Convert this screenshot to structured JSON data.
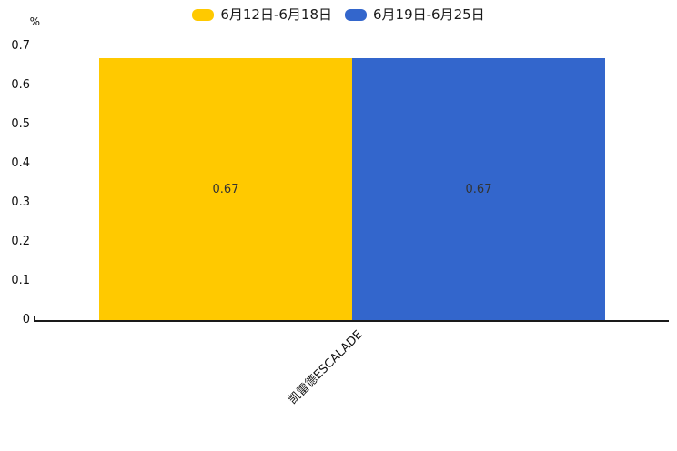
{
  "chart_data": {
    "type": "bar",
    "categories": [
      "凯雷德ESCALADE"
    ],
    "series": [
      {
        "name": "6月12日-6月18日",
        "color": "#FFC900",
        "values": [
          0.67
        ]
      },
      {
        "name": "6月19日-6月25日",
        "color": "#3366CC",
        "values": [
          0.67
        ]
      }
    ],
    "value_labels": [
      "0.67",
      "0.67"
    ],
    "title": "",
    "xlabel": "",
    "ylabel": "%",
    "ylim": [
      0,
      0.7
    ],
    "yticks": [
      "0.7",
      "0.6",
      "0.5",
      "0.4",
      "0.3",
      "0.2",
      "0.1",
      "0"
    ],
    "grid": false,
    "legend_position": "top",
    "axis_color": "#1a1a1a",
    "label_color": "#333333"
  }
}
